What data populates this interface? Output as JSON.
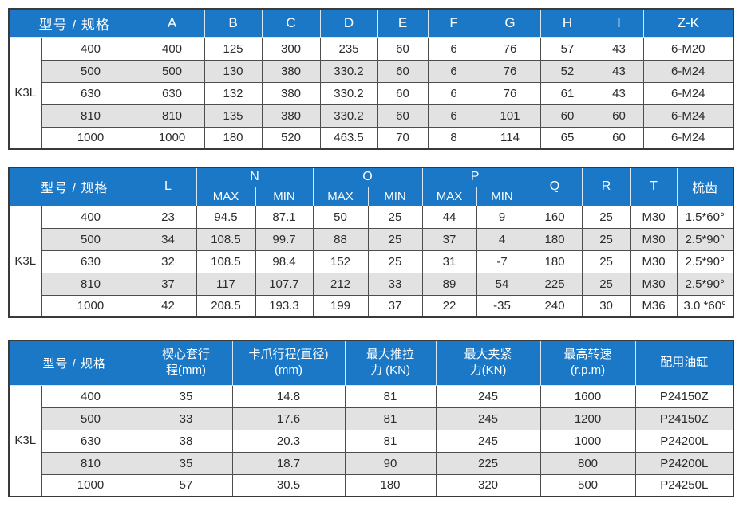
{
  "colors": {
    "header_bg": "#1a78c6",
    "row_alt_bg": "#e2e2e2",
    "border_dark": "#3a3a3a",
    "text": "#2b2b2b"
  },
  "model_spec_label": "型号 / 规格",
  "model": "K3L",
  "specs": [
    "400",
    "500",
    "630",
    "810",
    "1000"
  ],
  "table1": {
    "columns": [
      "A",
      "B",
      "C",
      "D",
      "E",
      "F",
      "G",
      "H",
      "I",
      "Z-K"
    ],
    "rows": [
      [
        "400",
        "125",
        "300",
        "235",
        "60",
        "6",
        "76",
        "57",
        "43",
        "6-M20"
      ],
      [
        "500",
        "130",
        "380",
        "330.2",
        "60",
        "6",
        "76",
        "52",
        "43",
        "6-M24"
      ],
      [
        "630",
        "132",
        "380",
        "330.2",
        "60",
        "6",
        "76",
        "61",
        "43",
        "6-M24"
      ],
      [
        "810",
        "135",
        "380",
        "330.2",
        "60",
        "6",
        "101",
        "60",
        "60",
        "6-M24"
      ],
      [
        "1000",
        "180",
        "520",
        "463.5",
        "70",
        "8",
        "114",
        "65",
        "60",
        "6-M24"
      ]
    ]
  },
  "table2": {
    "col_l": "L",
    "groups": [
      "N",
      "O",
      "P"
    ],
    "sub": [
      "MAX",
      "MIN"
    ],
    "tail": [
      "Q",
      "R",
      "T",
      "梳齿"
    ],
    "rows": [
      [
        "23",
        "94.5",
        "87.1",
        "50",
        "25",
        "44",
        "9",
        "160",
        "25",
        "M30",
        "1.5*60°"
      ],
      [
        "34",
        "108.5",
        "99.7",
        "88",
        "25",
        "37",
        "4",
        "180",
        "25",
        "M30",
        "2.5*90°"
      ],
      [
        "32",
        "108.5",
        "98.4",
        "152",
        "25",
        "31",
        "-7",
        "180",
        "25",
        "M30",
        "2.5*90°"
      ],
      [
        "37",
        "117",
        "107.7",
        "212",
        "33",
        "89",
        "54",
        "225",
        "25",
        "M30",
        "2.5*90°"
      ],
      [
        "42",
        "208.5",
        "193.3",
        "199",
        "37",
        "22",
        "-35",
        "240",
        "30",
        "M36",
        "3.0 *60°"
      ]
    ]
  },
  "table3": {
    "columns": [
      {
        "lines": [
          "楔心套行",
          "程(mm)"
        ]
      },
      {
        "lines": [
          "卡爪行程(直径)",
          "(mm)"
        ]
      },
      {
        "lines": [
          "最大推拉",
          "力 (KN)"
        ]
      },
      {
        "lines": [
          "最大夹紧",
          "力(KN)"
        ]
      },
      {
        "lines": [
          "最高转速",
          "(r.p.m)"
        ]
      },
      {
        "lines": [
          "配用油缸"
        ]
      }
    ],
    "rows": [
      [
        "35",
        "14.8",
        "81",
        "245",
        "1600",
        "P24150Z"
      ],
      [
        "33",
        "17.6",
        "81",
        "245",
        "1200",
        "P24150Z"
      ],
      [
        "38",
        "20.3",
        "81",
        "245",
        "1000",
        "P24200L"
      ],
      [
        "35",
        "18.7",
        "90",
        "225",
        "800",
        "P24200L"
      ],
      [
        "57",
        "30.5",
        "180",
        "320",
        "500",
        "P24250L"
      ]
    ]
  }
}
